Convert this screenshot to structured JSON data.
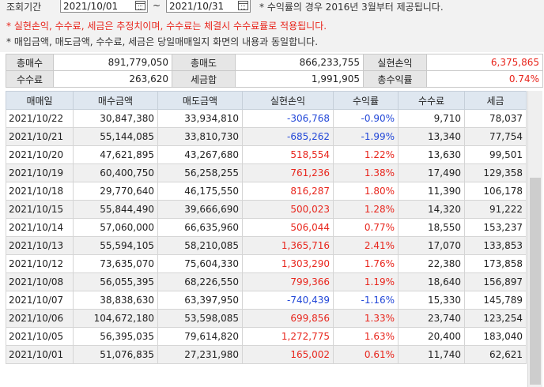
{
  "header": {
    "range_label": "조회기간",
    "start_date": "2021/10/01",
    "range_sep": "~",
    "end_date": "2021/10/31",
    "note_rate": "* 수익률의 경우 2016년 3월부터 제공됩니다.",
    "note_estimate": "* 실현손익, 수수료, 세금은 추정치이며, 수수료는 체결시 수수료률로 적용됩니다.",
    "note_same": "* 매입금액, 매도금액, 수수료, 세금은 당일매매일지 화면의 내용과 동일합니다."
  },
  "summary": {
    "total_buy_label": "총매수",
    "total_buy": "891,779,050",
    "total_sell_label": "총매도",
    "total_sell": "866,233,755",
    "realized_label": "실현손익",
    "realized": "6,375,865",
    "fee_label": "수수료",
    "fee": "263,620",
    "tax_label": "세금합",
    "tax": "1,991,905",
    "rate_label": "총수익률",
    "rate": "0.74%"
  },
  "table": {
    "columns": [
      "매매일",
      "매수금액",
      "매도금액",
      "실현손익",
      "수익률",
      "수수료",
      "세금"
    ],
    "rows": [
      [
        "2021/10/22",
        "30,847,380",
        "33,934,810",
        "-306,768",
        "-0.90%",
        "9,710",
        "78,037"
      ],
      [
        "2021/10/21",
        "55,144,085",
        "33,810,730",
        "-685,262",
        "-1.99%",
        "13,340",
        "77,754"
      ],
      [
        "2021/10/20",
        "47,621,895",
        "43,267,680",
        "518,554",
        "1.22%",
        "13,630",
        "99,501"
      ],
      [
        "2021/10/19",
        "60,400,750",
        "56,258,255",
        "761,236",
        "1.38%",
        "17,490",
        "129,358"
      ],
      [
        "2021/10/18",
        "29,770,640",
        "46,175,550",
        "816,287",
        "1.80%",
        "11,390",
        "106,178"
      ],
      [
        "2021/10/15",
        "55,844,490",
        "39,666,690",
        "500,023",
        "1.28%",
        "14,320",
        "91,222"
      ],
      [
        "2021/10/14",
        "57,060,000",
        "66,635,960",
        "506,044",
        "0.77%",
        "18,550",
        "153,237"
      ],
      [
        "2021/10/13",
        "55,594,105",
        "58,210,085",
        "1,365,716",
        "2.41%",
        "17,070",
        "133,853"
      ],
      [
        "2021/10/12",
        "73,635,070",
        "75,604,330",
        "1,303,290",
        "1.76%",
        "22,380",
        "173,858"
      ],
      [
        "2021/10/08",
        "56,055,395",
        "68,226,550",
        "799,366",
        "1.19%",
        "18,640",
        "156,897"
      ],
      [
        "2021/10/07",
        "38,838,630",
        "63,397,950",
        "-740,439",
        "-1.16%",
        "15,330",
        "145,789"
      ],
      [
        "2021/10/06",
        "104,672,180",
        "53,598,085",
        "699,856",
        "1.33%",
        "23,740",
        "123,254"
      ],
      [
        "2021/10/05",
        "56,395,035",
        "79,614,820",
        "1,272,775",
        "1.63%",
        "20,400",
        "183,040"
      ],
      [
        "2021/10/01",
        "51,076,835",
        "27,231,980",
        "165,002",
        "0.61%",
        "11,740",
        "62,621"
      ]
    ]
  },
  "colors": {
    "positive": "#e8261d",
    "negative": "#2348d8",
    "header_bg": "#dfe7f0"
  }
}
